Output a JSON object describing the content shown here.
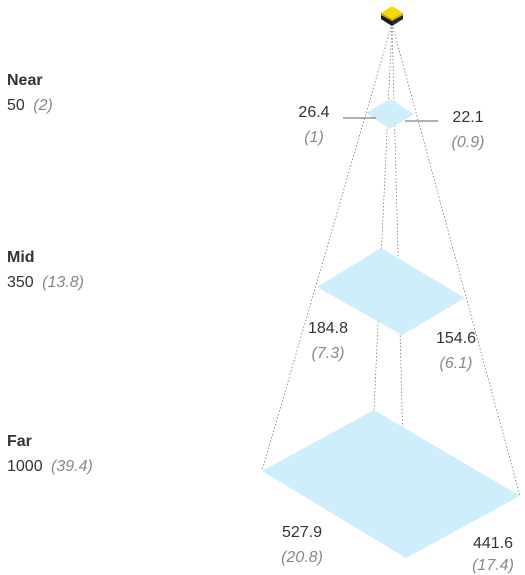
{
  "colors": {
    "plane_fill": "#cdeefa",
    "camera_top": "#f5d90a",
    "camera_body": "#1a1a1a",
    "label_dark": "#333333",
    "label_muted": "#888888"
  },
  "camera": {
    "icon": "camera-icon"
  },
  "levels": [
    {
      "id": "near",
      "name": "Near",
      "distance": "50",
      "distance_alt": "(2)",
      "width": "26.4",
      "width_alt": "(1)",
      "height": "22.1",
      "height_alt": "(0.9)"
    },
    {
      "id": "mid",
      "name": "Mid",
      "distance": "350",
      "distance_alt": "(13.8)",
      "width": "184.8",
      "width_alt": "(7.3)",
      "height": "154.6",
      "height_alt": "(6.1)"
    },
    {
      "id": "far",
      "name": "Far",
      "distance": "1000",
      "distance_alt": "(39.4)",
      "width": "527.9",
      "width_alt": "(20.8)",
      "height": "441.6",
      "height_alt": "(17.4)"
    }
  ]
}
